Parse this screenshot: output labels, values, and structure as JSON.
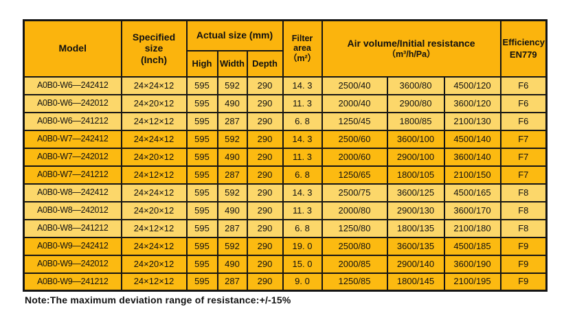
{
  "colors": {
    "header_bg": "#fbb40d",
    "band_light": "#fcd76a",
    "band_dark": "#fcba11",
    "border": "#141414",
    "text": "#101010",
    "page_bg": "#ffffff"
  },
  "header": {
    "model": "Model",
    "specified_size": "Specified size",
    "specified_size_unit": "(Inch)",
    "actual_size": "Actual size (mm)",
    "high": "High",
    "width": "Width",
    "depth": "Depth",
    "filter_line1": "Filter",
    "filter_line2": "area",
    "filter_unit": "（m²）",
    "air_volume": "Air volume/Initial resistance",
    "air_volume_unit": "（m³/h/Pa）",
    "efficiency": "Efficiency",
    "efficiency_standard": "EN779"
  },
  "rows": [
    {
      "model": "A0B0-W6—242412",
      "specified_size": "24×24×12",
      "high": "595",
      "width": "592",
      "depth": "290",
      "filter_area": "14. 3",
      "air": [
        "2500/40",
        "3600/80",
        "4500/120"
      ],
      "efficiency": "F6",
      "band": "light"
    },
    {
      "model": "A0B0-W6—242012",
      "specified_size": "24×20×12",
      "high": "595",
      "width": "490",
      "depth": "290",
      "filter_area": "11. 3",
      "air": [
        "2000/40",
        "2900/80",
        "3600/120"
      ],
      "efficiency": "F6",
      "band": "light"
    },
    {
      "model": "A0B0-W6—241212",
      "specified_size": "24×12×12",
      "high": "595",
      "width": "287",
      "depth": "290",
      "filter_area": "6. 8",
      "air": [
        "1250/45",
        "1800/85",
        "2100/130"
      ],
      "efficiency": "F6",
      "band": "light"
    },
    {
      "model": "A0B0-W7—242412",
      "specified_size": "24×24×12",
      "high": "595",
      "width": "592",
      "depth": "290",
      "filter_area": "14. 3",
      "air": [
        "2500/60",
        "3600/100",
        "4500/140"
      ],
      "efficiency": "F7",
      "band": "dark"
    },
    {
      "model": "A0B0-W7—242012",
      "specified_size": "24×20×12",
      "high": "595",
      "width": "490",
      "depth": "290",
      "filter_area": "11. 3",
      "air": [
        "2000/60",
        "2900/100",
        "3600/140"
      ],
      "efficiency": "F7",
      "band": "dark"
    },
    {
      "model": "A0B0-W7—241212",
      "specified_size": "24×12×12",
      "high": "595",
      "width": "287",
      "depth": "290",
      "filter_area": "6. 8",
      "air": [
        "1250/65",
        "1800/105",
        "2100/150"
      ],
      "efficiency": "F7",
      "band": "dark"
    },
    {
      "model": "A0B0-W8—242412",
      "specified_size": "24×24×12",
      "high": "595",
      "width": "592",
      "depth": "290",
      "filter_area": "14. 3",
      "air": [
        "2500/75",
        "3600/125",
        "4500/165"
      ],
      "efficiency": "F8",
      "band": "light"
    },
    {
      "model": "A0B0-W8—242012",
      "specified_size": "24×20×12",
      "high": "595",
      "width": "490",
      "depth": "290",
      "filter_area": "11. 3",
      "air": [
        "2000/80",
        "2900/130",
        "3600/170"
      ],
      "efficiency": "F8",
      "band": "light"
    },
    {
      "model": "A0B0-W8—241212",
      "specified_size": "24×12×12",
      "high": "595",
      "width": "287",
      "depth": "290",
      "filter_area": "6. 8",
      "air": [
        "1250/80",
        "1800/135",
        "2100/180"
      ],
      "efficiency": "F8",
      "band": "light"
    },
    {
      "model": "A0B0-W9—242412",
      "specified_size": "24×24×12",
      "high": "595",
      "width": "592",
      "depth": "290",
      "filter_area": "19. 0",
      "air": [
        "2500/80",
        "3600/135",
        "4500/185"
      ],
      "efficiency": "F9",
      "band": "dark"
    },
    {
      "model": "A0B0-W9—242012",
      "specified_size": "24×20×12",
      "high": "595",
      "width": "490",
      "depth": "290",
      "filter_area": "15. 0",
      "air": [
        "2000/85",
        "2900/140",
        "3600/190"
      ],
      "efficiency": "F9",
      "band": "dark"
    },
    {
      "model": "A0B0-W9—241212",
      "specified_size": "24×12×12",
      "high": "595",
      "width": "287",
      "depth": "290",
      "filter_area": "9. 0",
      "air": [
        "1250/85",
        "1800/145",
        "2100/195"
      ],
      "efficiency": "F9",
      "band": "dark"
    }
  ],
  "note": "Note:The maximum deviation range of resistance:+/-15%"
}
